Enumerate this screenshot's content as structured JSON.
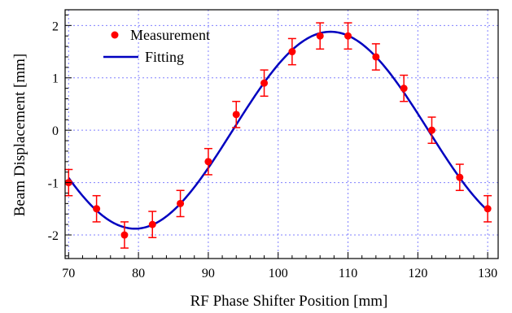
{
  "chart_data": {
    "type": "scatter",
    "title": "",
    "xlabel": "RF Phase Shifter Position [mm]",
    "ylabel": "Beam Displacement [mm]",
    "xlim": [
      69.5,
      131.5
    ],
    "ylim": [
      -2.45,
      2.3
    ],
    "x_ticks": [
      70,
      80,
      90,
      100,
      110,
      120,
      130
    ],
    "y_ticks": [
      -2,
      -1,
      0,
      1,
      2
    ],
    "grid": true,
    "legend_position": "top-left",
    "series": [
      {
        "name": "Measurement",
        "kind": "scatter-errorbar",
        "color": "#ff0000",
        "x": [
          70,
          74,
          78,
          82,
          86,
          90,
          94,
          98,
          102,
          106,
          110,
          114,
          118,
          122,
          126,
          130
        ],
        "y": [
          -1.0,
          -1.5,
          -2.0,
          -1.8,
          -1.4,
          -0.6,
          0.3,
          0.9,
          1.5,
          1.8,
          1.8,
          1.4,
          0.8,
          0.0,
          -0.9,
          -1.5
        ],
        "error": 0.25
      },
      {
        "name": "Fitting",
        "kind": "line",
        "color": "#0000c0",
        "model": "sine",
        "amplitude": 1.88,
        "center_x": 107.5,
        "period": 56,
        "offset": 0.0
      }
    ]
  },
  "legend": {
    "measurement_label": "Measurement",
    "fitting_label": "Fitting"
  },
  "colors": {
    "grid": "#8080ff",
    "axis": "#000000"
  }
}
